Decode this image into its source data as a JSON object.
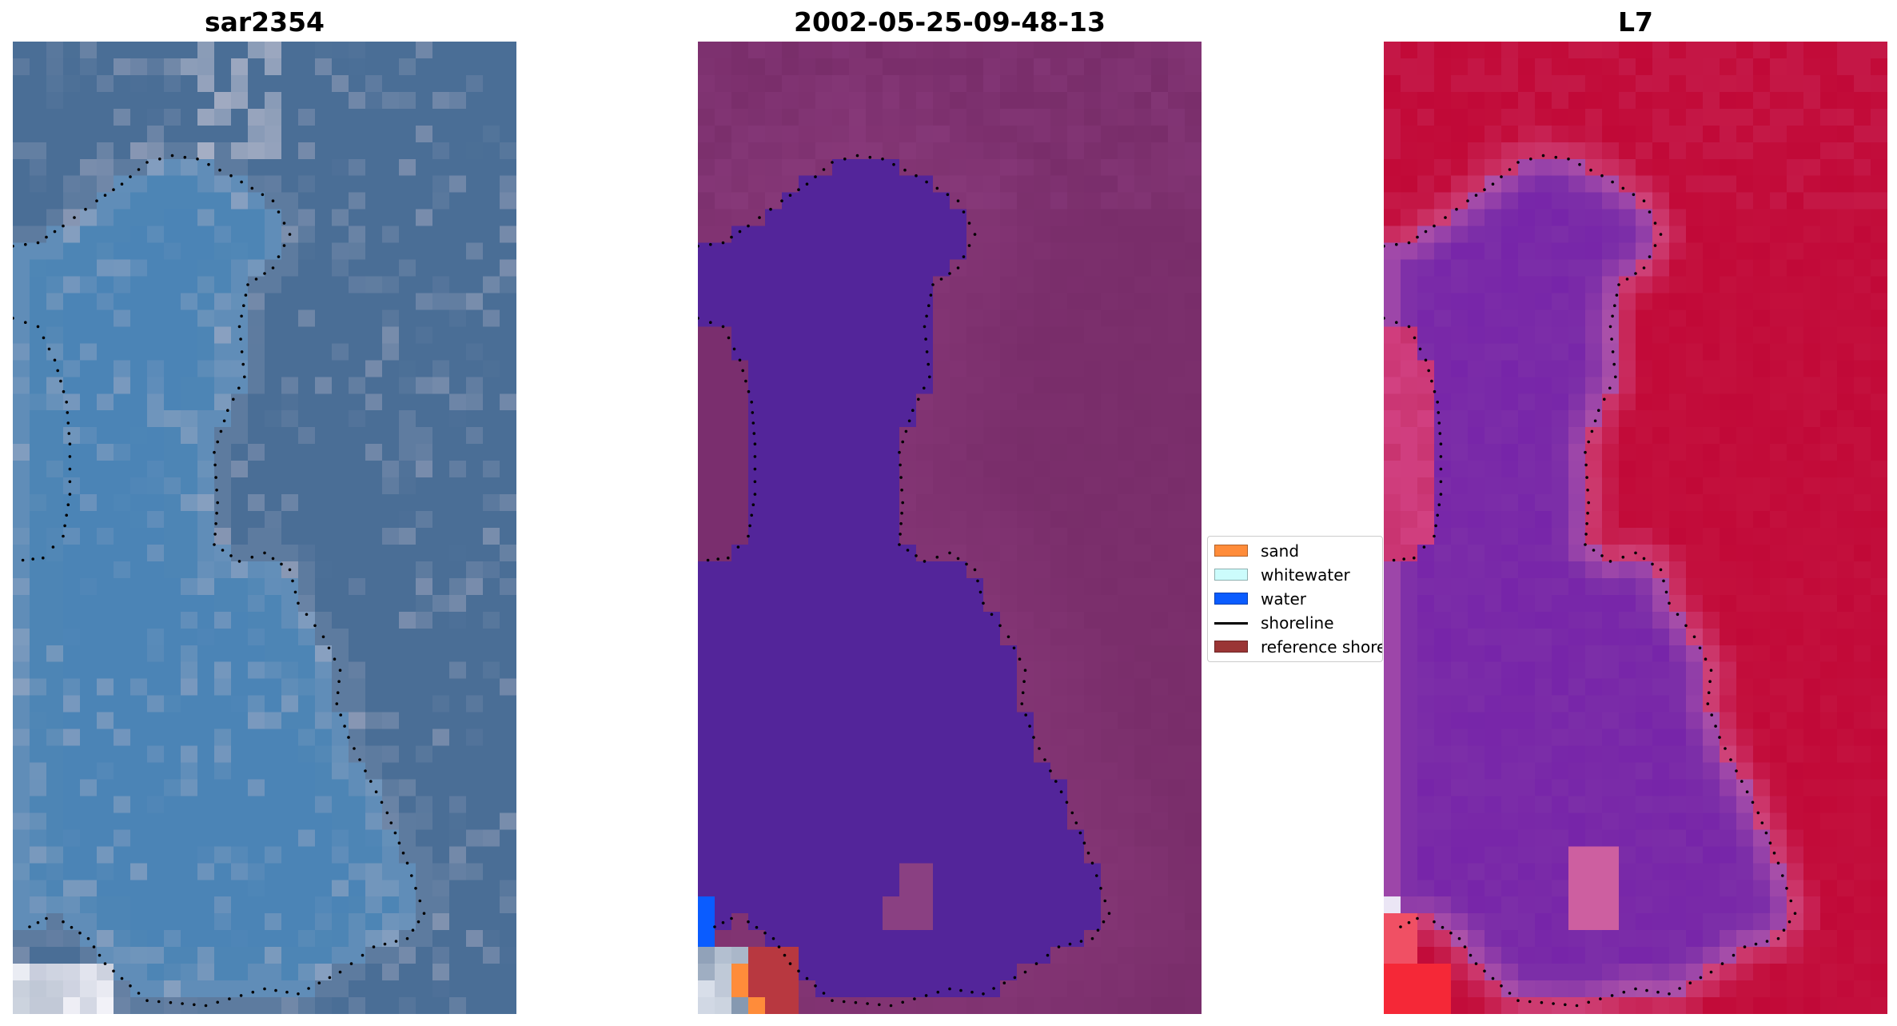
{
  "panels": [
    {
      "title": "sar2354",
      "image_description_key": "rgb"
    },
    {
      "title": "2002-05-25-09-48-13",
      "image_description_key": "classified"
    },
    {
      "title": "L7",
      "image_description_key": "mndwi"
    }
  ],
  "legend": {
    "items": [
      {
        "label": "sand",
        "kind": "patch",
        "color": "#ff8c3a"
      },
      {
        "label": "whitewater",
        "kind": "patch",
        "color": "#ccfcfc"
      },
      {
        "label": "water",
        "kind": "patch",
        "color": "#0a5cff"
      },
      {
        "label": "shoreline",
        "kind": "line",
        "color": "#000000"
      },
      {
        "label": "reference shoreline",
        "kind": "patch",
        "color": "#9a3535"
      }
    ]
  },
  "colors": {
    "rgb_land": "#4a6e96",
    "rgb_water": "#4d85b5",
    "classified_land": "#7a2e6b",
    "classified_water": "#53259a",
    "mndwi_land": "#c20c3a",
    "mndwi_water": "#7c2ea8",
    "shoreline_dots": "#000000"
  }
}
